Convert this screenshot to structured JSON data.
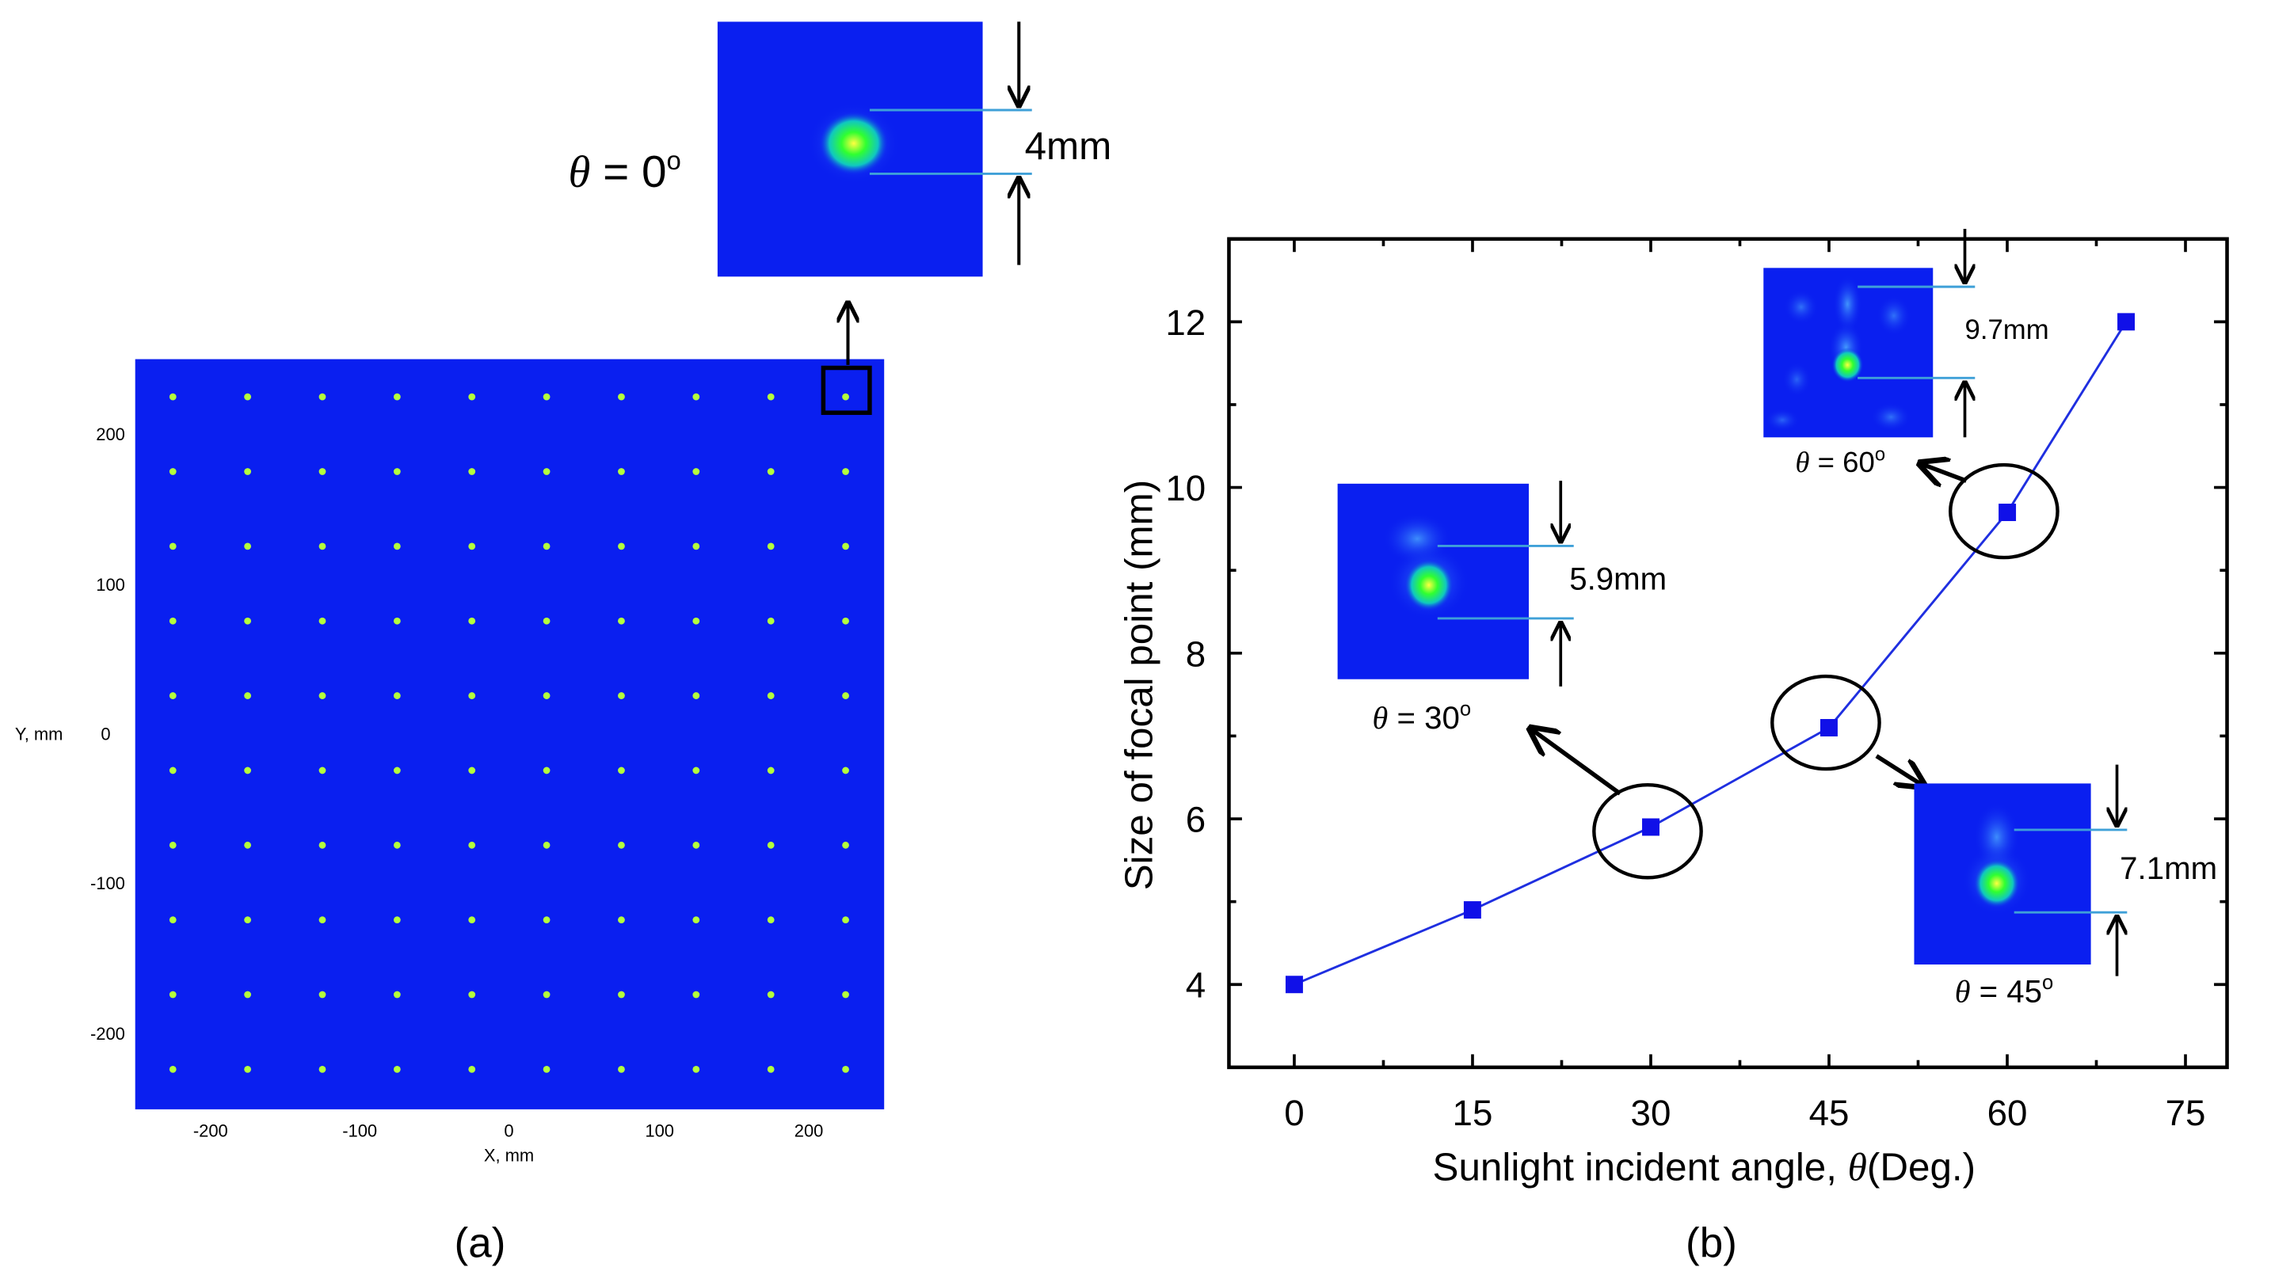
{
  "colors": {
    "field": "#0a1ff0",
    "spot": "#b4ff3c",
    "line": "#1f2fe0",
    "marker": "#1010e8",
    "callout_line": "#3fa0d8",
    "axis": "#000000"
  },
  "panel_a": {
    "caption": "(a)",
    "xlabel": "X, mm",
    "ylabel": "Y, mm",
    "x_ticks": [
      "-200",
      "-100",
      "0",
      "100",
      "200"
    ],
    "y_ticks": [
      "200",
      "100",
      "0",
      "-100",
      "-200"
    ],
    "grid_rows": 10,
    "grid_cols": 10,
    "zoom": {
      "angle_symbol": "θ",
      "angle_eq": " = 0",
      "degree": "o",
      "size_label": "4mm"
    }
  },
  "panel_b": {
    "caption": "(b)",
    "insets": [
      {
        "angle_symbol": "θ",
        "angle_eq": " = 30",
        "degree": "o",
        "size_label": "5.9mm"
      },
      {
        "angle_symbol": "θ",
        "angle_eq": " = 45",
        "degree": "o",
        "size_label": "7.1mm"
      },
      {
        "angle_symbol": "θ",
        "angle_eq": " = 60",
        "degree": "o",
        "size_label": "9.7mm"
      }
    ]
  },
  "chart_data": {
    "type": "line",
    "title": "",
    "xlabel_prefix": "Sunlight incident angle,  ",
    "xlabel_symbol": "θ",
    "xlabel_suffix": "(Deg.)",
    "ylabel": "Size of focal point (mm)",
    "x_ticks": [
      0,
      15,
      30,
      45,
      60,
      75
    ],
    "y_ticks": [
      4,
      6,
      8,
      10,
      12
    ],
    "xlim": [
      -5.5,
      78.5
    ],
    "ylim": [
      3,
      13
    ],
    "series": [
      {
        "name": "Size of focal point",
        "x": [
          0,
          15,
          30,
          45,
          60,
          70
        ],
        "y": [
          4.0,
          4.9,
          5.9,
          7.1,
          9.7,
          12.0
        ]
      }
    ]
  }
}
